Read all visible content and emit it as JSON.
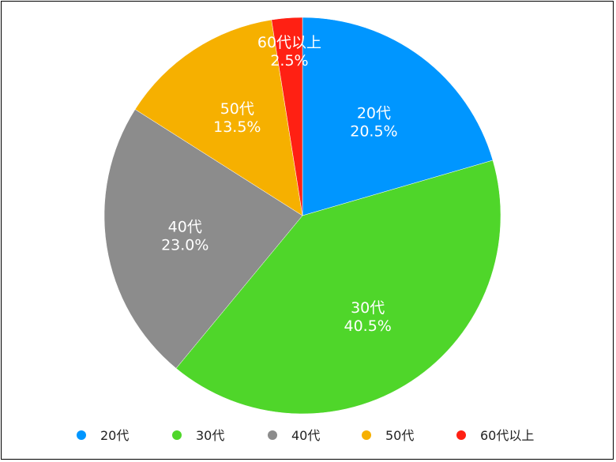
{
  "chart_data": {
    "type": "pie",
    "slices": [
      {
        "label": "20代",
        "value": 20.5,
        "display": "20.5%",
        "color": "#0096FF"
      },
      {
        "label": "30代",
        "value": 40.5,
        "display": "40.5%",
        "color": "#4FD62A"
      },
      {
        "label": "40代",
        "value": 23.0,
        "display": "23.0%",
        "color": "#8C8C8C"
      },
      {
        "label": "50代",
        "value": 13.5,
        "display": "13.5%",
        "color": "#F6B000"
      },
      {
        "label": "60代以上",
        "value": 2.5,
        "display": "2.5%",
        "color": "#FF2013"
      }
    ],
    "legend": {
      "placement": "bottom"
    },
    "start_angle_deg": 0,
    "direction": "clockwise"
  }
}
